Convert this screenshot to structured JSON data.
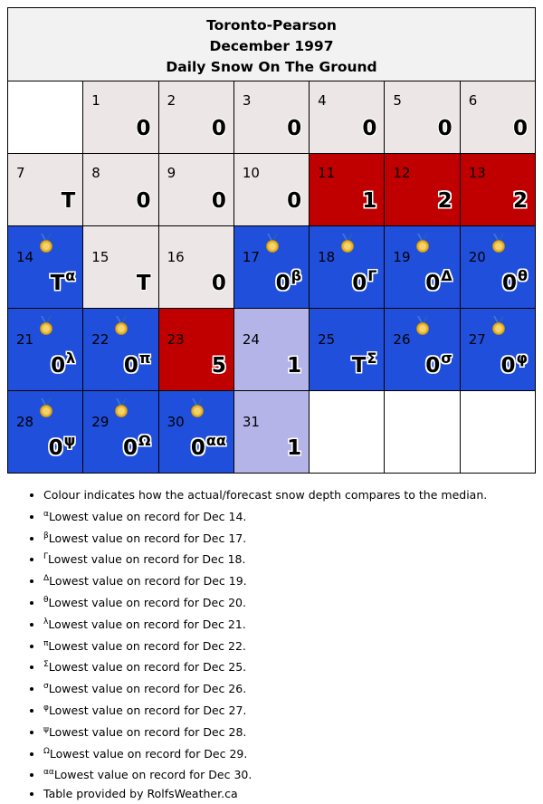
{
  "header": {
    "station": "Toronto-Pearson",
    "month": "December 1997",
    "subtitle": "Daily Snow On The Ground"
  },
  "weeks": [
    [
      {
        "day": "",
        "value": "",
        "sup": "",
        "color": "none",
        "medal": false
      },
      {
        "day": "1",
        "value": "0",
        "sup": "",
        "color": "grey",
        "medal": false
      },
      {
        "day": "2",
        "value": "0",
        "sup": "",
        "color": "grey",
        "medal": false
      },
      {
        "day": "3",
        "value": "0",
        "sup": "",
        "color": "grey",
        "medal": false
      },
      {
        "day": "4",
        "value": "0",
        "sup": "",
        "color": "grey",
        "medal": false
      },
      {
        "day": "5",
        "value": "0",
        "sup": "",
        "color": "grey",
        "medal": false
      },
      {
        "day": "6",
        "value": "0",
        "sup": "",
        "color": "grey",
        "medal": false
      }
    ],
    [
      {
        "day": "7",
        "value": "T",
        "sup": "",
        "color": "grey",
        "medal": false
      },
      {
        "day": "8",
        "value": "0",
        "sup": "",
        "color": "grey",
        "medal": false
      },
      {
        "day": "9",
        "value": "0",
        "sup": "",
        "color": "grey",
        "medal": false
      },
      {
        "day": "10",
        "value": "0",
        "sup": "",
        "color": "grey",
        "medal": false
      },
      {
        "day": "11",
        "value": "1",
        "sup": "",
        "color": "red",
        "medal": false
      },
      {
        "day": "12",
        "value": "2",
        "sup": "",
        "color": "red",
        "medal": false
      },
      {
        "day": "13",
        "value": "2",
        "sup": "",
        "color": "red",
        "medal": false
      }
    ],
    [
      {
        "day": "14",
        "value": "T",
        "sup": "α",
        "color": "blue",
        "medal": true
      },
      {
        "day": "15",
        "value": "T",
        "sup": "",
        "color": "grey",
        "medal": false
      },
      {
        "day": "16",
        "value": "0",
        "sup": "",
        "color": "grey",
        "medal": false
      },
      {
        "day": "17",
        "value": "0",
        "sup": "β",
        "color": "blue",
        "medal": true
      },
      {
        "day": "18",
        "value": "0",
        "sup": "Γ",
        "color": "blue",
        "medal": true
      },
      {
        "day": "19",
        "value": "0",
        "sup": "Δ",
        "color": "blue",
        "medal": true
      },
      {
        "day": "20",
        "value": "0",
        "sup": "θ",
        "color": "blue",
        "medal": true
      }
    ],
    [
      {
        "day": "21",
        "value": "0",
        "sup": "λ",
        "color": "blue",
        "medal": true
      },
      {
        "day": "22",
        "value": "0",
        "sup": "π",
        "color": "blue",
        "medal": true
      },
      {
        "day": "23",
        "value": "5",
        "sup": "",
        "color": "red",
        "medal": false
      },
      {
        "day": "24",
        "value": "1",
        "sup": "",
        "color": "lavender",
        "medal": false
      },
      {
        "day": "25",
        "value": "T",
        "sup": "Σ",
        "color": "blue",
        "medal": false
      },
      {
        "day": "26",
        "value": "0",
        "sup": "σ",
        "color": "blue",
        "medal": true
      },
      {
        "day": "27",
        "value": "0",
        "sup": "φ",
        "color": "blue",
        "medal": true
      }
    ],
    [
      {
        "day": "28",
        "value": "0",
        "sup": "ψ",
        "color": "blue",
        "medal": true
      },
      {
        "day": "29",
        "value": "0",
        "sup": "Ω",
        "color": "blue",
        "medal": true
      },
      {
        "day": "30",
        "value": "0",
        "sup": "αα",
        "color": "blue",
        "medal": true
      },
      {
        "day": "31",
        "value": "1",
        "sup": "",
        "color": "lavender",
        "medal": false
      },
      {
        "day": "",
        "value": "",
        "sup": "",
        "color": "none",
        "medal": false
      },
      {
        "day": "",
        "value": "",
        "sup": "",
        "color": "none",
        "medal": false
      },
      {
        "day": "",
        "value": "",
        "sup": "",
        "color": "none",
        "medal": false
      }
    ]
  ],
  "colors": {
    "grey": "#ece6e6",
    "red": "#c00000",
    "blue": "#1f4fdb",
    "lavender": "#b4b4e8",
    "none": "#ffffff"
  },
  "icons": {
    "medal": "medal-icon"
  },
  "notes": [
    {
      "sup": "",
      "text": "Colour indicates how the actual/forecast snow depth compares to the median."
    },
    {
      "sup": "α",
      "text": "Lowest value on record for Dec 14."
    },
    {
      "sup": "β",
      "text": "Lowest value on record for Dec 17."
    },
    {
      "sup": "Γ",
      "text": "Lowest value on record for Dec 18."
    },
    {
      "sup": "Δ",
      "text": "Lowest value on record for Dec 19."
    },
    {
      "sup": "θ",
      "text": "Lowest value on record for Dec 20."
    },
    {
      "sup": "λ",
      "text": "Lowest value on record for Dec 21."
    },
    {
      "sup": "π",
      "text": "Lowest value on record for Dec 22."
    },
    {
      "sup": "Σ",
      "text": "Lowest value on record for Dec 25."
    },
    {
      "sup": "σ",
      "text": "Lowest value on record for Dec 26."
    },
    {
      "sup": "φ",
      "text": "Lowest value on record for Dec 27."
    },
    {
      "sup": "ψ",
      "text": "Lowest value on record for Dec 28."
    },
    {
      "sup": "Ω",
      "text": "Lowest value on record for Dec 29."
    },
    {
      "sup": "αα",
      "text": "Lowest value on record for Dec 30."
    },
    {
      "sup": "",
      "text": "Table provided by RolfsWeather.ca"
    }
  ]
}
